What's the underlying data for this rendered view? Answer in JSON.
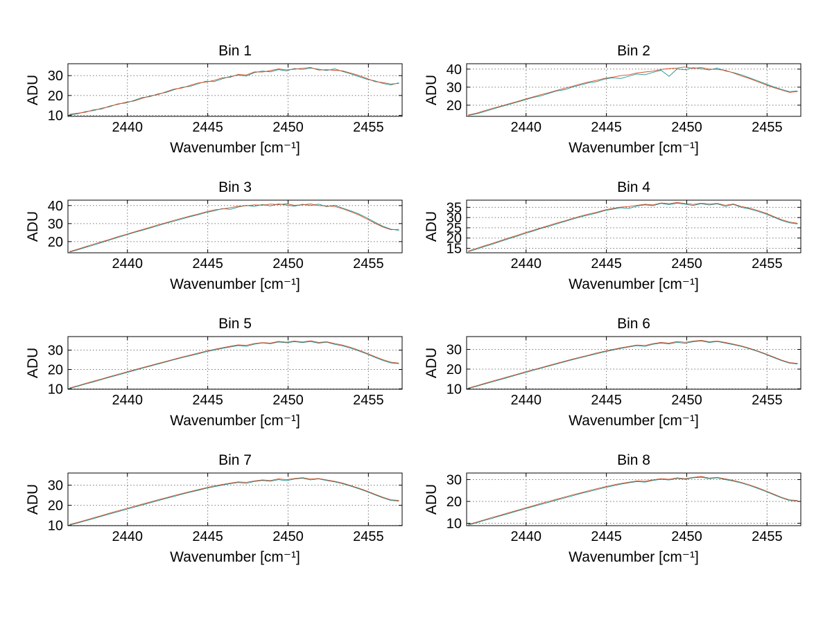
{
  "figure": {
    "background": "#ffffff",
    "axis_color": "#000000",
    "grid_color": "#777777",
    "text_color": "#000000"
  },
  "chart_data": [
    {
      "id": "bin-1",
      "type": "line",
      "title": "Bin 1",
      "xlabel": "Wavenumber [cm⁻¹]",
      "ylabel": "ADU",
      "xlim": [
        2436.3,
        2457.1
      ],
      "ylim": [
        9.5,
        36
      ],
      "xticks": [
        2440,
        2445,
        2450,
        2455
      ],
      "yticks": [
        10,
        20,
        30
      ],
      "grid": true,
      "x_start": 2436.4,
      "x_step": 0.5,
      "series": [
        {
          "name": "spectrum-teal",
          "color": "#168f8f",
          "values": [
            10.2,
            10.8,
            11.9,
            12.4,
            13.6,
            14.3,
            15.8,
            16.2,
            17.5,
            18.9,
            19.4,
            20.8,
            21.5,
            22.9,
            24.1,
            24.6,
            25.9,
            27.2,
            27.0,
            28.4,
            29.6,
            30.2,
            29.8,
            31.5,
            32.3,
            31.9,
            33.0,
            32.4,
            33.6,
            33.1,
            33.8,
            33.2,
            32.6,
            33.4,
            32.1,
            30.9,
            29.5,
            28.2,
            27.4,
            26.1,
            25.3,
            26.4
          ]
        },
        {
          "name": "spectrum-orange",
          "color": "#d2491f",
          "values": [
            10.5,
            11.1,
            11.6,
            12.8,
            13.2,
            14.7,
            15.5,
            16.6,
            17.2,
            18.5,
            19.8,
            20.4,
            21.9,
            23.2,
            23.8,
            25.1,
            26.3,
            26.8,
            27.6,
            28.9,
            29.2,
            30.6,
            30.3,
            31.9,
            31.8,
            32.5,
            33.4,
            32.9,
            33.2,
            33.7,
            34.1,
            32.8,
            33.0,
            32.7,
            32.4,
            31.3,
            30.1,
            28.6,
            27.0,
            26.5,
            25.8,
            26.1
          ]
        }
      ]
    },
    {
      "id": "bin-2",
      "type": "line",
      "title": "Bin 2",
      "xlabel": "Wavenumber [cm⁻¹]",
      "ylabel": "ADU",
      "xlim": [
        2436.3,
        2457.1
      ],
      "ylim": [
        13.8,
        43
      ],
      "xticks": [
        2440,
        2445,
        2450,
        2455
      ],
      "yticks": [
        20,
        30,
        40
      ],
      "grid": true,
      "x_start": 2436.4,
      "x_step": 0.5,
      "series": [
        {
          "name": "spectrum-teal",
          "color": "#168f8f",
          "values": [
            14.3,
            15.2,
            16.4,
            17.8,
            19.1,
            20.3,
            21.6,
            22.8,
            24.2,
            25.1,
            26.5,
            27.9,
            28.6,
            30.1,
            31.2,
            32.4,
            33.1,
            34.5,
            35.2,
            34.8,
            36.1,
            37.3,
            36.9,
            38.2,
            39.4,
            36.0,
            40.1,
            39.6,
            40.8,
            40.2,
            39.5,
            40.6,
            39.0,
            38.1,
            36.8,
            35.2,
            33.6,
            31.9,
            30.2,
            28.8,
            27.5,
            27.9
          ]
        },
        {
          "name": "spectrum-orange",
          "color": "#d2491f",
          "values": [
            14.6,
            15.5,
            16.9,
            18.2,
            19.4,
            20.7,
            21.9,
            23.3,
            24.5,
            25.8,
            26.9,
            28.2,
            29.4,
            30.5,
            31.8,
            32.9,
            33.8,
            34.9,
            35.6,
            36.4,
            36.8,
            37.9,
            38.4,
            38.9,
            39.8,
            40.3,
            40.6,
            41.2,
            40.4,
            40.9,
            40.0,
            39.8,
            39.3,
            37.9,
            36.2,
            34.8,
            33.1,
            31.4,
            29.8,
            28.4,
            27.1,
            27.6
          ]
        }
      ]
    },
    {
      "id": "bin-3",
      "type": "line",
      "title": "Bin 3",
      "xlabel": "Wavenumber [cm⁻¹]",
      "ylabel": "ADU",
      "xlim": [
        2436.3,
        2457.1
      ],
      "ylim": [
        13.8,
        43
      ],
      "xticks": [
        2440,
        2445,
        2450,
        2455
      ],
      "yticks": [
        20,
        30,
        40
      ],
      "grid": true,
      "x_start": 2436.4,
      "x_step": 0.5,
      "series": [
        {
          "name": "spectrum-teal",
          "color": "#168f8f",
          "values": [
            14.2,
            15.4,
            16.8,
            18.1,
            19.5,
            20.9,
            22.3,
            23.6,
            25.0,
            26.2,
            27.5,
            28.8,
            30.2,
            31.3,
            32.6,
            33.8,
            34.9,
            36.2,
            37.1,
            38.3,
            37.9,
            39.2,
            40.1,
            39.5,
            40.6,
            39.8,
            40.9,
            40.3,
            39.6,
            40.7,
            40.0,
            40.8,
            39.4,
            40.2,
            38.6,
            37.1,
            35.4,
            33.2,
            30.8,
            28.5,
            26.9,
            26.3
          ]
        },
        {
          "name": "spectrum-orange",
          "color": "#d2491f",
          "values": [
            14.5,
            15.8,
            17.2,
            18.6,
            19.9,
            21.2,
            22.7,
            24.0,
            25.3,
            26.6,
            27.9,
            29.3,
            30.5,
            31.8,
            33.0,
            34.2,
            35.3,
            36.5,
            37.6,
            38.1,
            38.8,
            39.6,
            39.9,
            40.4,
            40.2,
            40.8,
            40.5,
            41.0,
            40.1,
            40.4,
            40.9,
            40.0,
            39.8,
            39.5,
            38.2,
            36.6,
            34.8,
            32.6,
            30.2,
            28.1,
            26.6,
            26.8
          ]
        }
      ]
    },
    {
      "id": "bin-4",
      "type": "line",
      "title": "Bin 4",
      "xlabel": "Wavenumber [cm⁻¹]",
      "ylabel": "ADU",
      "xlim": [
        2436.3,
        2457.1
      ],
      "ylim": [
        12.8,
        38.5
      ],
      "xticks": [
        2440,
        2445,
        2450,
        2455
      ],
      "yticks": [
        15,
        20,
        25,
        30,
        35
      ],
      "grid": true,
      "x_start": 2436.4,
      "x_step": 0.5,
      "series": [
        {
          "name": "spectrum-teal",
          "color": "#168f8f",
          "values": [
            13.3,
            14.5,
            15.8,
            17.0,
            18.3,
            19.6,
            20.8,
            22.1,
            23.3,
            24.6,
            25.7,
            26.9,
            28.1,
            29.2,
            30.4,
            31.3,
            32.2,
            33.4,
            34.1,
            34.8,
            34.4,
            35.6,
            36.2,
            35.8,
            36.9,
            36.3,
            37.0,
            36.5,
            35.9,
            36.8,
            36.1,
            36.7,
            35.5,
            36.4,
            35.0,
            34.2,
            33.1,
            31.8,
            30.2,
            28.6,
            27.4,
            26.9
          ]
        },
        {
          "name": "spectrum-orange",
          "color": "#d2491f",
          "values": [
            13.6,
            14.9,
            16.2,
            17.4,
            18.7,
            20.0,
            21.2,
            22.5,
            23.7,
            24.9,
            26.1,
            27.3,
            28.4,
            29.6,
            30.7,
            31.7,
            32.6,
            33.7,
            34.5,
            35.1,
            35.4,
            36.0,
            36.5,
            36.2,
            37.1,
            36.8,
            37.3,
            36.9,
            36.4,
            37.0,
            36.6,
            36.9,
            36.0,
            36.6,
            35.4,
            34.6,
            33.5,
            32.2,
            30.6,
            29.0,
            27.8,
            27.2
          ]
        }
      ]
    },
    {
      "id": "bin-5",
      "type": "line",
      "title": "Bin 5",
      "xlabel": "Wavenumber [cm⁻¹]",
      "ylabel": "ADU",
      "xlim": [
        2436.3,
        2457.1
      ],
      "ylim": [
        9.8,
        37
      ],
      "xticks": [
        2440,
        2445,
        2450,
        2455
      ],
      "yticks": [
        10,
        20,
        30
      ],
      "grid": true,
      "x_start": 2436.4,
      "x_step": 0.5,
      "series": [
        {
          "name": "spectrum-teal",
          "color": "#168f8f",
          "values": [
            10.2,
            11.3,
            12.5,
            13.6,
            14.8,
            16.0,
            17.1,
            18.3,
            19.4,
            20.6,
            21.7,
            22.8,
            23.9,
            25.0,
            26.1,
            27.1,
            28.1,
            29.2,
            30.0,
            30.9,
            31.6,
            32.4,
            32.0,
            33.1,
            33.7,
            33.3,
            34.2,
            33.8,
            34.4,
            33.9,
            34.5,
            33.6,
            34.1,
            33.0,
            32.2,
            31.0,
            29.6,
            28.0,
            26.3,
            24.7,
            23.4,
            23.0
          ]
        },
        {
          "name": "spectrum-orange",
          "color": "#d2491f",
          "values": [
            10.5,
            11.6,
            12.8,
            14.0,
            15.1,
            16.3,
            17.5,
            18.6,
            19.8,
            20.9,
            22.0,
            23.1,
            24.2,
            25.3,
            26.4,
            27.4,
            28.5,
            29.5,
            30.4,
            31.2,
            32.0,
            32.7,
            32.5,
            33.4,
            33.9,
            33.6,
            34.5,
            34.1,
            34.7,
            34.2,
            34.8,
            34.0,
            34.3,
            33.4,
            32.6,
            31.4,
            30.0,
            28.4,
            26.7,
            25.1,
            23.8,
            23.3
          ]
        }
      ]
    },
    {
      "id": "bin-6",
      "type": "line",
      "title": "Bin 6",
      "xlabel": "Wavenumber [cm⁻¹]",
      "ylabel": "ADU",
      "xlim": [
        2436.3,
        2457.1
      ],
      "ylim": [
        9.8,
        36.5
      ],
      "xticks": [
        2440,
        2445,
        2450,
        2455
      ],
      "yticks": [
        10,
        20,
        30
      ],
      "grid": true,
      "x_start": 2436.4,
      "x_step": 0.5,
      "series": [
        {
          "name": "spectrum-teal",
          "color": "#168f8f",
          "values": [
            10.1,
            11.2,
            12.4,
            13.5,
            14.7,
            15.8,
            17.0,
            18.1,
            19.3,
            20.4,
            21.5,
            22.6,
            23.7,
            24.8,
            25.8,
            26.8,
            27.8,
            28.8,
            29.6,
            30.5,
            31.2,
            31.9,
            31.5,
            32.6,
            33.2,
            32.8,
            33.6,
            33.1,
            33.9,
            34.3,
            33.5,
            34.0,
            33.2,
            32.4,
            31.5,
            30.3,
            29.0,
            27.5,
            25.9,
            24.3,
            23.0,
            22.6
          ]
        },
        {
          "name": "spectrum-orange",
          "color": "#d2491f",
          "values": [
            10.4,
            11.5,
            12.7,
            13.9,
            15.0,
            16.2,
            17.3,
            18.5,
            19.6,
            20.7,
            21.8,
            22.9,
            24.0,
            25.1,
            26.1,
            27.1,
            28.2,
            29.1,
            30.0,
            30.8,
            31.5,
            32.2,
            32.0,
            32.9,
            33.5,
            33.2,
            34.0,
            33.6,
            34.2,
            34.6,
            33.9,
            34.2,
            33.5,
            32.7,
            31.8,
            30.6,
            29.3,
            27.8,
            26.2,
            24.6,
            23.3,
            22.9
          ]
        }
      ]
    },
    {
      "id": "bin-7",
      "type": "line",
      "title": "Bin 7",
      "xlabel": "Wavenumber [cm⁻¹]",
      "ylabel": "ADU",
      "xlim": [
        2436.3,
        2457.1
      ],
      "ylim": [
        9.9,
        36
      ],
      "xticks": [
        2440,
        2445,
        2450,
        2455
      ],
      "yticks": [
        10,
        20,
        30
      ],
      "grid": true,
      "x_start": 2436.4,
      "x_step": 0.5,
      "series": [
        {
          "name": "spectrum-teal",
          "color": "#168f8f",
          "values": [
            10.2,
            11.2,
            12.3,
            13.4,
            14.6,
            15.7,
            16.8,
            17.9,
            19.0,
            20.1,
            21.2,
            22.3,
            23.4,
            24.4,
            25.5,
            26.5,
            27.4,
            28.4,
            29.2,
            30.0,
            30.7,
            31.3,
            30.9,
            31.8,
            32.3,
            31.9,
            32.7,
            32.2,
            33.0,
            33.4,
            32.6,
            33.1,
            32.3,
            31.6,
            30.7,
            29.5,
            28.2,
            26.8,
            25.2,
            23.7,
            22.4,
            22.1
          ]
        },
        {
          "name": "spectrum-orange",
          "color": "#d2491f",
          "values": [
            10.5,
            11.5,
            12.6,
            13.8,
            14.9,
            16.1,
            17.2,
            18.3,
            19.4,
            20.5,
            21.6,
            22.7,
            23.7,
            24.8,
            25.8,
            26.8,
            27.8,
            28.7,
            29.6,
            30.3,
            31.0,
            31.6,
            31.4,
            32.1,
            32.6,
            32.3,
            33.1,
            32.7,
            33.3,
            33.7,
            33.0,
            33.3,
            32.6,
            31.9,
            31.0,
            29.8,
            28.5,
            27.1,
            25.5,
            24.0,
            22.7,
            22.4
          ]
        }
      ]
    },
    {
      "id": "bin-8",
      "type": "line",
      "title": "Bin 8",
      "xlabel": "Wavenumber [cm⁻¹]",
      "ylabel": "ADU",
      "xlim": [
        2436.3,
        2457.1
      ],
      "ylim": [
        8.9,
        33
      ],
      "xticks": [
        2440,
        2445,
        2450,
        2455
      ],
      "yticks": [
        10,
        20,
        30
      ],
      "grid": true,
      "x_start": 2436.4,
      "x_step": 0.5,
      "series": [
        {
          "name": "spectrum-teal",
          "color": "#168f8f",
          "values": [
            9.2,
            10.2,
            11.3,
            12.3,
            13.4,
            14.4,
            15.5,
            16.5,
            17.6,
            18.6,
            19.6,
            20.6,
            21.6,
            22.6,
            23.6,
            24.5,
            25.4,
            26.3,
            27.1,
            27.9,
            28.5,
            29.1,
            28.8,
            29.6,
            30.1,
            29.8,
            30.5,
            30.1,
            30.8,
            31.1,
            30.4,
            30.8,
            30.0,
            29.3,
            28.4,
            27.3,
            26.0,
            24.6,
            23.1,
            21.6,
            20.4,
            20.1
          ]
        },
        {
          "name": "spectrum-orange",
          "color": "#d2491f",
          "values": [
            9.5,
            10.5,
            11.6,
            12.7,
            13.7,
            14.8,
            15.8,
            16.9,
            17.9,
            19.0,
            20.0,
            21.0,
            22.0,
            23.0,
            23.9,
            24.9,
            25.8,
            26.7,
            27.5,
            28.2,
            28.8,
            29.4,
            29.2,
            29.9,
            30.4,
            30.1,
            30.8,
            30.4,
            31.0,
            31.4,
            30.7,
            31.0,
            30.3,
            29.6,
            28.7,
            27.6,
            26.3,
            24.9,
            23.4,
            21.9,
            20.7,
            20.4
          ]
        }
      ]
    }
  ]
}
